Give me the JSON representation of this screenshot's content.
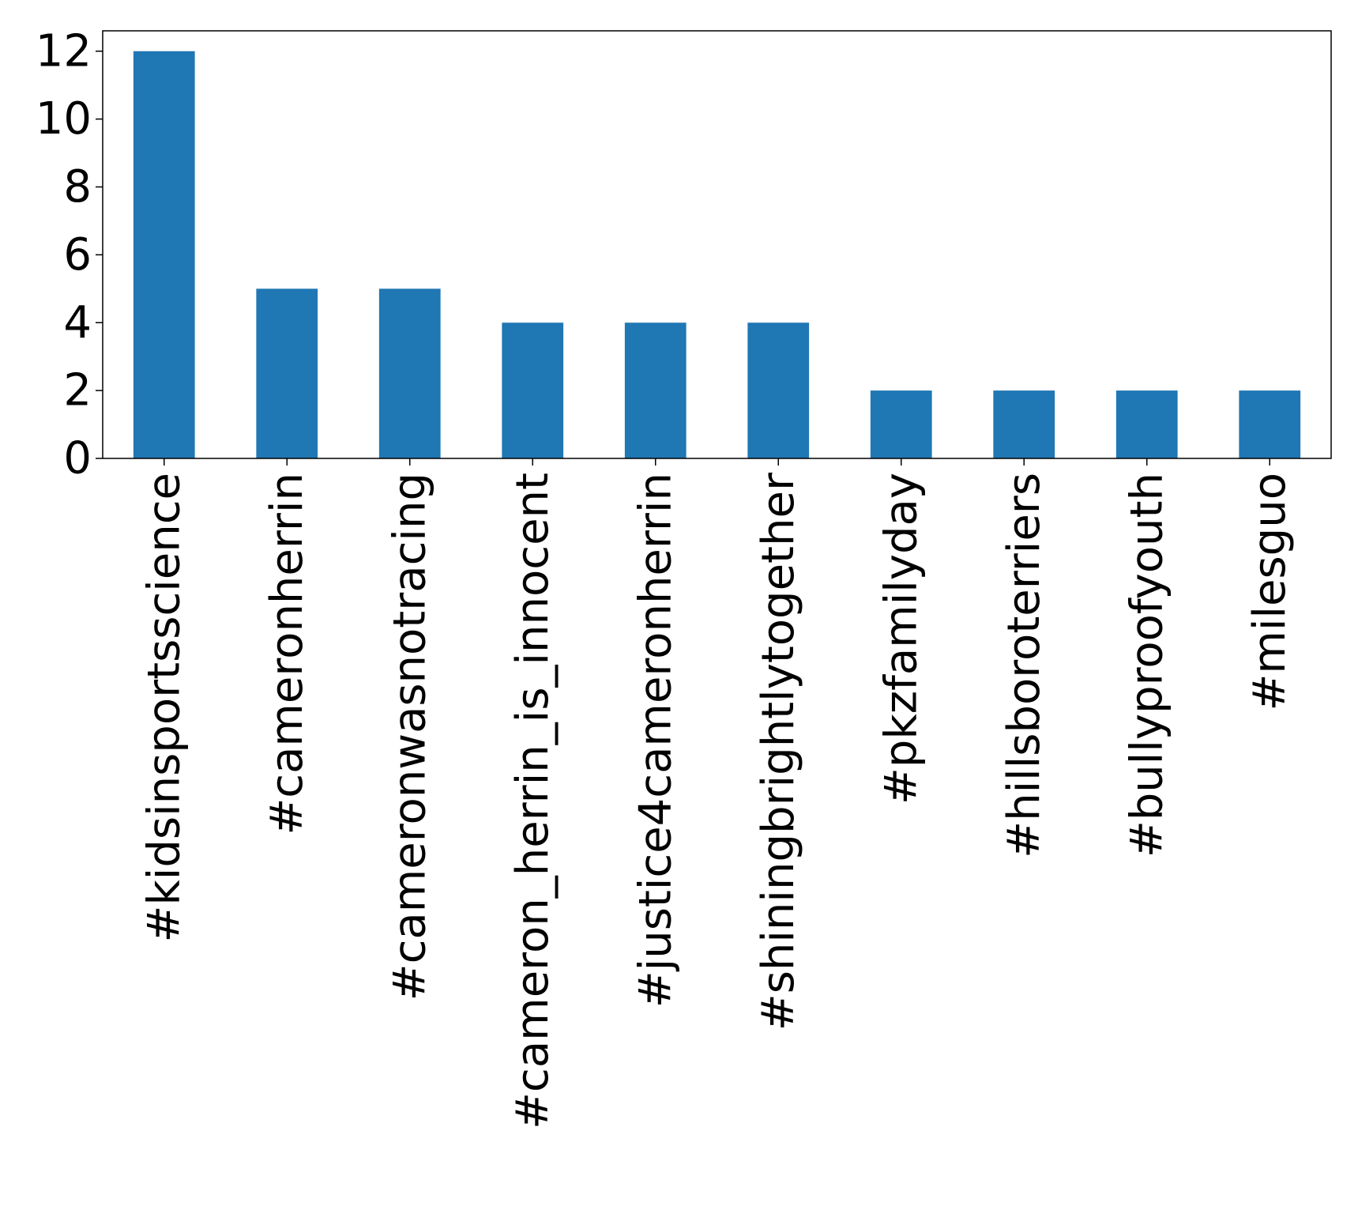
{
  "chart_data": {
    "type": "bar",
    "categories": [
      "#kidsinsportsscience",
      "#cameronherrin",
      "#cameronwasnotracing",
      "#cameron_herrin_is_innocent",
      "#justice4cameronherrin",
      "#shiningbrightlytogether",
      "#pkzfamilyday",
      "#hillsboroterriers",
      "#bullyproofyouth",
      "#milesguo"
    ],
    "values": [
      12,
      5,
      5,
      4,
      4,
      4,
      2,
      2,
      2,
      2
    ],
    "ylim": [
      0,
      12.6
    ],
    "yticks": [
      "0",
      "2",
      "4",
      "6",
      "8",
      "10",
      "12"
    ],
    "title": "",
    "xlabel": "",
    "ylabel": "",
    "bar_color": "#1f77b4",
    "grid": false,
    "legend": "none"
  }
}
